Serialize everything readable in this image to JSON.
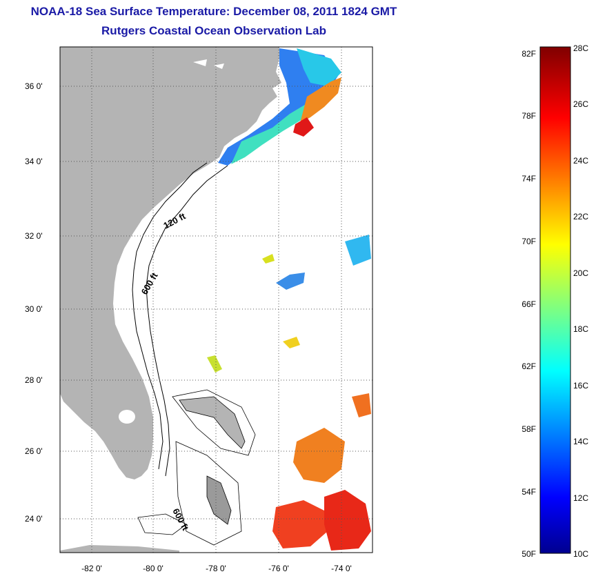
{
  "header": {
    "title": "NOAA-18 Sea Surface Temperature:  December 08, 2011 1824 GMT",
    "subtitle": "Rutgers Coastal Ocean Observation Lab"
  },
  "map": {
    "lat_labels": [
      "36 0'",
      "34 0'",
      "32 0'",
      "30 0'",
      "28 0'",
      "26 0'",
      "24 0'"
    ],
    "lon_labels": [
      "-82 0'",
      "-80 0'",
      "-78 0'",
      "-76 0'",
      "-74 0'"
    ],
    "contour_labels": [
      "120 ft",
      "600 ft",
      "600 ft"
    ],
    "colors": {
      "land": "#b4b4b4",
      "ocean": "#ffffff",
      "grid": "#555555"
    }
  },
  "colorbar": {
    "fahrenheit_labels": [
      "82F",
      "78F",
      "74F",
      "70F",
      "66F",
      "62F",
      "58F",
      "54F",
      "50F"
    ],
    "celsius_labels": [
      "28C",
      "26C",
      "24C",
      "22C",
      "20C",
      "18C",
      "16C",
      "14C",
      "12C",
      "10C"
    ],
    "range_c": [
      10,
      28
    ],
    "colormap": "jet"
  }
}
